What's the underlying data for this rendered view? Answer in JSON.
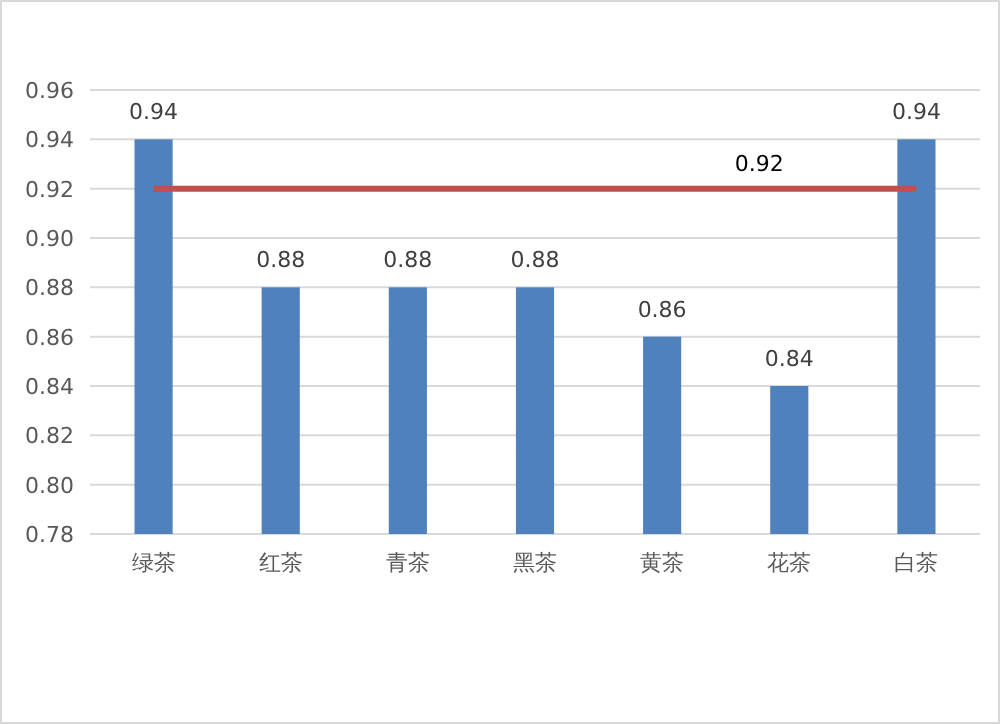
{
  "chart_data": {
    "type": "bar",
    "categories": [
      "绿茶",
      "红茶",
      "青茶",
      "黑茶",
      "黄茶",
      "花茶",
      "白茶"
    ],
    "series": [
      {
        "color": "#4f81bd",
        "values": [
          0.94,
          0.88,
          0.88,
          0.88,
          0.86,
          0.84,
          0.94
        ],
        "value_labels": [
          "0.94",
          "0.88",
          "0.88",
          "0.88",
          "0.86",
          "0.84",
          "0.94"
        ]
      },
      {
        "type": "line",
        "color": "#c0504d",
        "values": [
          0.92,
          0.92,
          0.92,
          0.92,
          0.92,
          0.92,
          0.92
        ],
        "value_labels": [
          null,
          null,
          null,
          null,
          null,
          "0.92",
          null
        ]
      }
    ],
    "ylim": [
      0.78,
      0.96
    ],
    "yticks": [
      {
        "value": 0.78,
        "label": "0.78"
      },
      {
        "value": 0.8,
        "label": "0.80"
      },
      {
        "value": 0.82,
        "label": "0.82"
      },
      {
        "value": 0.84,
        "label": "0.84"
      },
      {
        "value": 0.86,
        "label": "0.86"
      },
      {
        "value": 0.88,
        "label": "0.88"
      },
      {
        "value": 0.9,
        "label": "0.90"
      },
      {
        "value": 0.92,
        "label": "0.92"
      },
      {
        "value": 0.94,
        "label": "0.94"
      },
      {
        "value": 0.96,
        "label": "0.96"
      }
    ],
    "grid": "y"
  }
}
